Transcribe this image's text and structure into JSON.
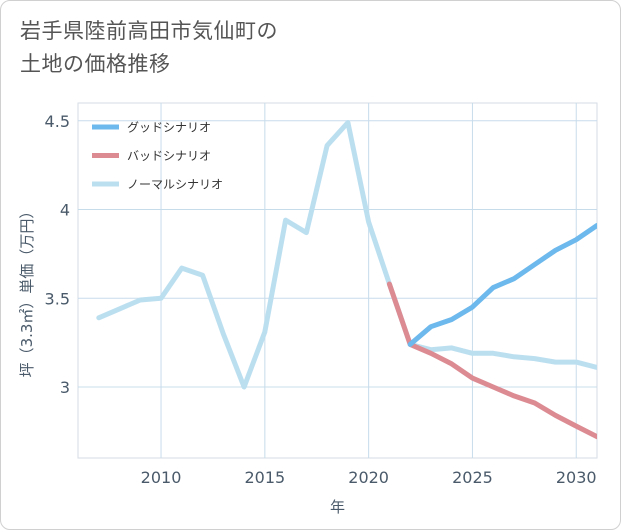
{
  "title_lines": [
    "岩手県陸前高田市気仙町の",
    "土地の価格推移"
  ],
  "chart_data": {
    "type": "line",
    "xlabel": "年",
    "ylabel": "坪（3.3㎡）単価（万円）",
    "xlim": [
      2006,
      2031
    ],
    "ylim": [
      2.6,
      4.6
    ],
    "xticks": [
      2010,
      2015,
      2020,
      2025,
      2030
    ],
    "yticks": [
      3,
      3.5,
      4,
      4.5
    ],
    "ytick_labels": [
      "3",
      "3.5",
      "4",
      "4.5"
    ],
    "grid": true,
    "legend_position": "top-left",
    "series": [
      {
        "name": "グッドシナリオ",
        "color": "#6db8ec",
        "x": [
          2022,
          2023,
          2024,
          2025,
          2026,
          2027,
          2028,
          2029,
          2030,
          2031
        ],
        "values": [
          3.24,
          3.34,
          3.38,
          3.45,
          3.56,
          3.61,
          3.69,
          3.77,
          3.83,
          3.91
        ]
      },
      {
        "name": "バッドシナリオ",
        "color": "#dc8b93",
        "x": [
          2021,
          2022,
          2023,
          2024,
          2025,
          2026,
          2027,
          2028,
          2029,
          2030,
          2031
        ],
        "values": [
          3.58,
          3.24,
          3.19,
          3.13,
          3.05,
          3.0,
          2.95,
          2.91,
          2.84,
          2.78,
          2.72
        ]
      },
      {
        "name": "ノーマルシナリオ",
        "color": "#bcdff0",
        "x": [
          2007,
          2008,
          2009,
          2010,
          2011,
          2012,
          2013,
          2014,
          2015,
          2016,
          2017,
          2018,
          2019,
          2020,
          2021,
          2022,
          2023,
          2024,
          2025,
          2026,
          2027,
          2028,
          2029,
          2030,
          2031
        ],
        "values": [
          3.39,
          3.44,
          3.49,
          3.5,
          3.67,
          3.63,
          3.3,
          3.0,
          3.31,
          3.94,
          3.87,
          4.36,
          4.49,
          3.93,
          3.58,
          3.24,
          3.21,
          3.22,
          3.19,
          3.19,
          3.17,
          3.16,
          3.14,
          3.14,
          3.11
        ]
      }
    ]
  }
}
